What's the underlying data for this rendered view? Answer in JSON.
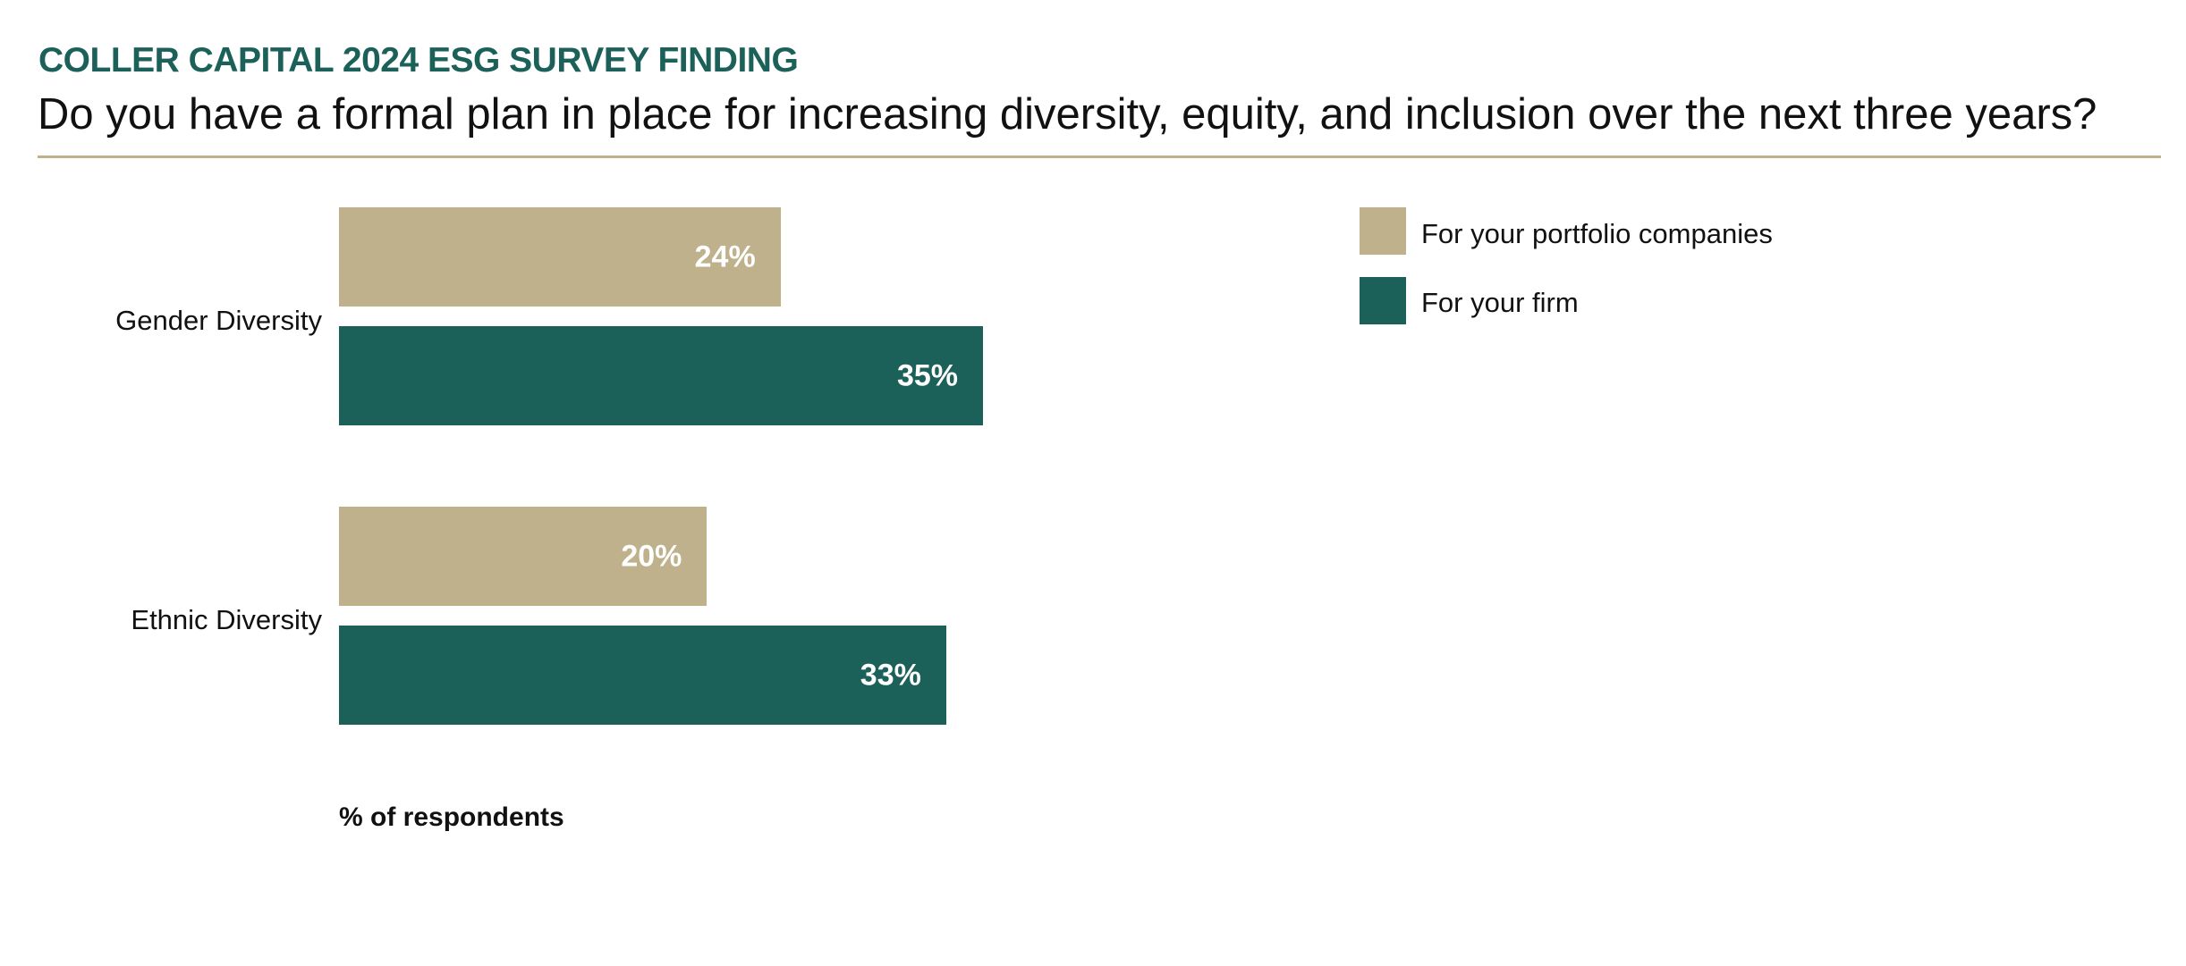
{
  "header": {
    "kicker": "COLLER CAPITAL 2024 ESG SURVEY FINDING",
    "question": "Do you have a formal plan in place for increasing diversity, equity, and inclusion over the next three years?"
  },
  "colors": {
    "portfolio": "#beb18b",
    "firm": "#1c6159",
    "kicker": "#1c6159"
  },
  "chart_data": {
    "type": "bar",
    "orientation": "horizontal",
    "title": "Do you have a formal plan in place for increasing diversity, equity, and inclusion over the next three years?",
    "categories": [
      "Gender  Diversity",
      "Ethnic  Diversity"
    ],
    "series": [
      {
        "name": "For your portfolio companies",
        "values": [
          24,
          20
        ],
        "labels": [
          "24%",
          "20%"
        ]
      },
      {
        "name": "For your firm",
        "values": [
          35,
          33
        ],
        "labels": [
          "35%",
          "33%"
        ]
      }
    ],
    "xlabel": "% of respondents",
    "ylabel": "",
    "xlim": [
      0,
      35
    ],
    "grid": false,
    "legend": "top-right"
  }
}
